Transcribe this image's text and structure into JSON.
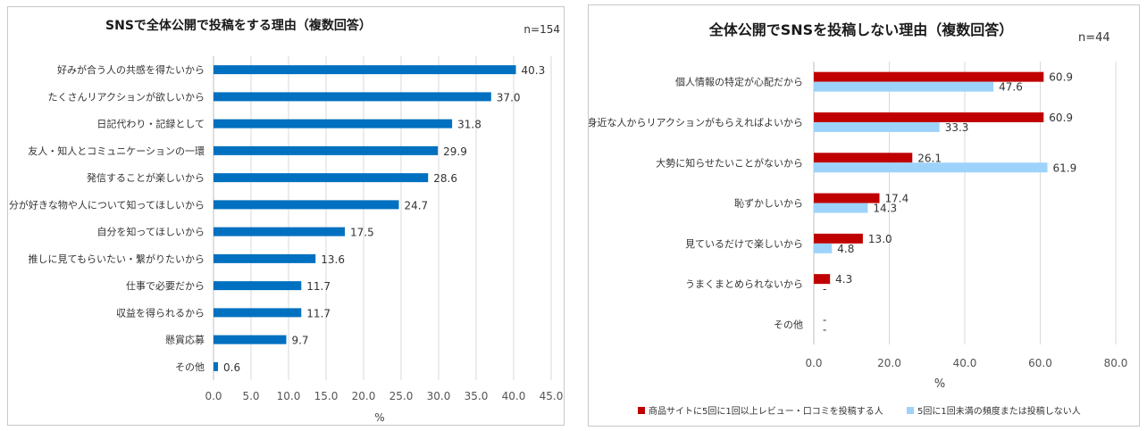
{
  "chart_data": [
    {
      "type": "bar",
      "orientation": "horizontal",
      "title": "SNSで全体公開で投稿をする理由（複数回答）",
      "n_label": "n=154",
      "categories": [
        "好みが合う人の共感を得たいから",
        "たくさんリアクションが欲しいから",
        "日記代わり・記録として",
        "友人・知人とコミュニケーションの一環",
        "発信することが楽しいから",
        "自分が好きな物や人について知ってほしいから",
        "自分を知ってほしいから",
        "推しに見てもらいたい・繋がりたいから",
        "仕事で必要だから",
        "収益を得られるから",
        "懸賞応募",
        "その他"
      ],
      "values": [
        40.3,
        37.0,
        31.8,
        29.9,
        28.6,
        24.7,
        17.5,
        13.6,
        11.7,
        11.7,
        9.7,
        0.6
      ],
      "value_labels": [
        "40.3",
        "37.0",
        "31.8",
        "29.9",
        "28.6",
        "24.7",
        "17.5",
        "13.6",
        "11.7",
        "11.7",
        "9.7",
        "0.6"
      ],
      "xlim": [
        0,
        45
      ],
      "xticks": [
        "0.0",
        "5.0",
        "10.0",
        "15.0",
        "20.0",
        "25.0",
        "30.0",
        "35.0",
        "40.0",
        "45.0"
      ],
      "xlabel": "%",
      "color": "#0070C0"
    },
    {
      "type": "bar",
      "orientation": "horizontal",
      "title": "全体公開でSNSを投稿しない理由（複数回答）",
      "n_label": "n=44",
      "categories": [
        "個人情報の特定が心配だから",
        "身近な人からリアクションがもらえればよいから",
        "大勢に知らせたいことがないから",
        "恥ずかしいから",
        "見ているだけで楽しいから",
        "うまくまとめられないから",
        "その他"
      ],
      "series": [
        {
          "name": "商品サイトに5回に1回以上レビュー・口コミを投稿する人",
          "color": "#C00000",
          "values": [
            60.9,
            60.9,
            26.1,
            17.4,
            13.0,
            4.3,
            0
          ],
          "value_labels": [
            "60.9",
            "60.9",
            "26.1",
            "17.4",
            "13.0",
            "4.3",
            "-"
          ]
        },
        {
          "name": "5回に1回未満の頻度または投稿しない人",
          "color": "#9DD3FA",
          "values": [
            47.6,
            33.3,
            61.9,
            14.3,
            4.8,
            0,
            0
          ],
          "value_labels": [
            "47.6",
            "33.3",
            "61.9",
            "14.3",
            "4.8",
            "-",
            "-"
          ]
        }
      ],
      "xlim": [
        0,
        80
      ],
      "xticks": [
        "0.0",
        "20.0",
        "40.0",
        "60.0",
        "80.0"
      ],
      "xlabel": "%",
      "legend": "bottom"
    }
  ]
}
